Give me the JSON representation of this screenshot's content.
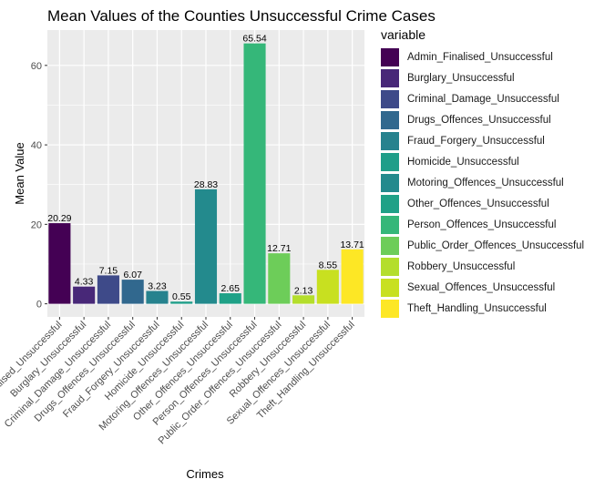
{
  "chart_data": {
    "type": "bar",
    "title": "Mean Values of the Counties Unsuccessful Crime Cases",
    "xlabel": "Crimes",
    "ylabel": "Mean Value",
    "legend_title": "variable",
    "legend_position": "right",
    "ylim": [
      -3.3,
      68.9
    ],
    "yticks": [
      0,
      20,
      40,
      60
    ],
    "grid": true,
    "categories": [
      "Admin_Finalised_Unsuccessful",
      "Burglary_Unsuccessful",
      "Criminal_Damage_Unsuccessful",
      "Drugs_Offences_Unsuccessful",
      "Fraud_Forgery_Unsuccessful",
      "Homicide_Unsuccessful",
      "Motoring_Offences_Unsuccessful",
      "Other_Offences_Unsuccessful",
      "Person_Offences_Unsuccessful",
      "Public_Order_Offences_Unsuccessful",
      "Robbery_Unsuccessful",
      "Sexual_Offences_Unsuccessful",
      "Theft_Handling_Unsuccessful"
    ],
    "values": [
      20.29,
      4.33,
      7.15,
      6.07,
      3.23,
      0.55,
      28.83,
      2.65,
      65.54,
      12.71,
      2.13,
      8.55,
      13.71
    ],
    "data_labels": [
      "20.29",
      "4.33",
      "7.15",
      "6.07",
      "3.23",
      "0.55",
      "28.83",
      "2.65",
      "65.54",
      "12.71",
      "2.13",
      "8.55",
      "13.71"
    ],
    "colors": [
      "#440154",
      "#482878",
      "#3E4A89",
      "#31688E",
      "#26828E",
      "#1F9E89",
      "#238A8D",
      "#1FA187",
      "#35B779",
      "#6DCD59",
      "#B4DE2C",
      "#C8E020",
      "#FDE725"
    ]
  }
}
